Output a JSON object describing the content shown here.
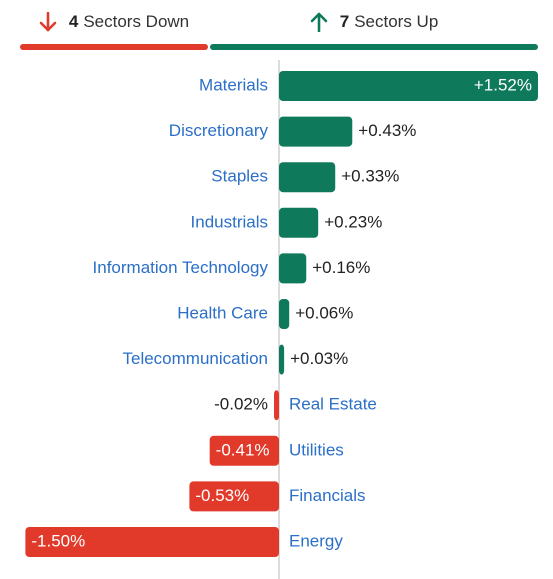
{
  "summary": {
    "down_count": "4",
    "down_label": "Sectors Down",
    "up_count": "7",
    "up_label": "Sectors Up"
  },
  "colors": {
    "positive": "#0e7a5b",
    "negative": "#e13a2b",
    "label": "#2b6fc7",
    "axis": "#d0d0d0",
    "value_text": "#222222"
  },
  "icons": {
    "down": "arrow-down-icon",
    "up": "arrow-up-icon"
  },
  "chart_data": {
    "type": "bar",
    "orientation": "horizontal",
    "unit": "%",
    "categories": [
      "Materials",
      "Discretionary",
      "Staples",
      "Industrials",
      "Information Technology",
      "Health Care",
      "Telecommunication",
      "Real Estate",
      "Utilities",
      "Financials",
      "Energy"
    ],
    "values": [
      1.52,
      0.43,
      0.33,
      0.23,
      0.16,
      0.06,
      0.03,
      -0.02,
      -0.41,
      -0.53,
      -1.5
    ],
    "value_labels": [
      "+1.52%",
      "+0.43%",
      "+0.33%",
      "+0.23%",
      "+0.16%",
      "+0.06%",
      "+0.03%",
      "-0.02%",
      "-0.41%",
      "-0.53%",
      "-1.50%"
    ],
    "xlim": [
      -1.52,
      1.52
    ],
    "grid": false,
    "legend": "none"
  }
}
